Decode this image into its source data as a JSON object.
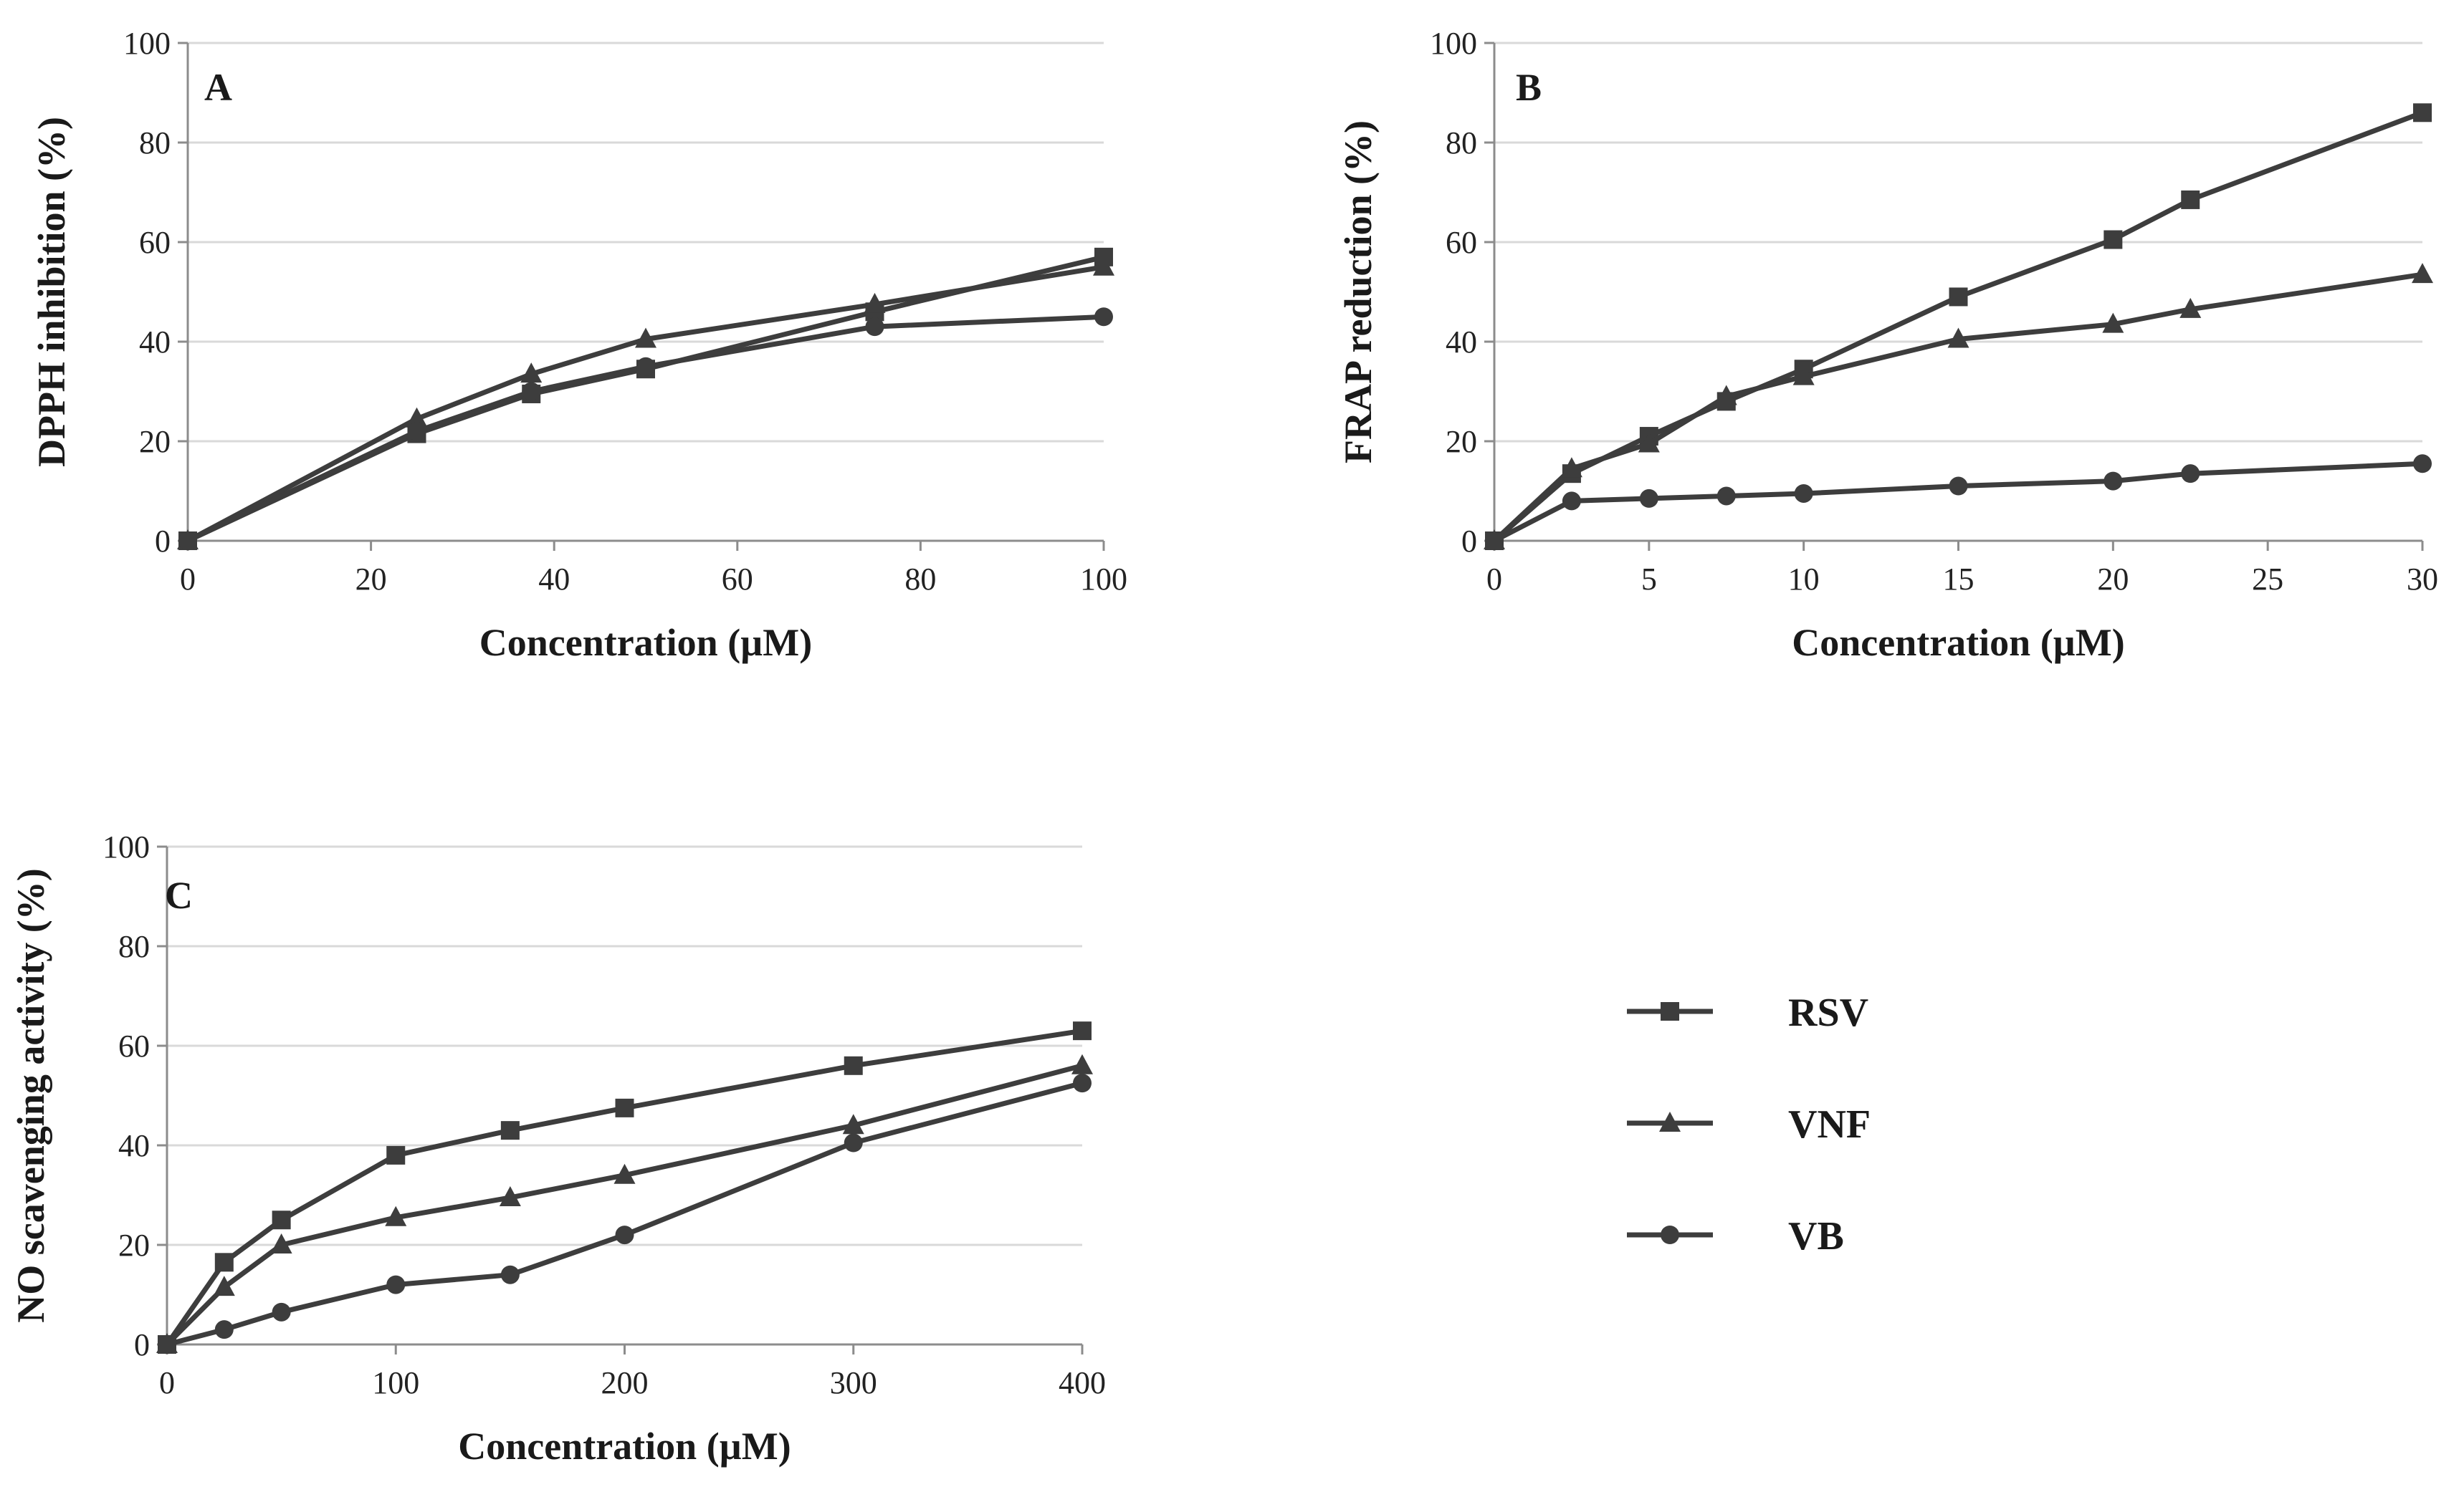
{
  "chart_data": [
    {
      "type": "line",
      "panel": "A",
      "xlabel": "Concentration (µM)",
      "ylabel": "DPPH inhibition (%)",
      "xlim": [
        0,
        100
      ],
      "ylim": [
        0,
        100
      ],
      "xticks": [
        0,
        20,
        40,
        60,
        80,
        100
      ],
      "yticks": [
        0,
        20,
        40,
        60,
        80,
        100
      ],
      "grid": "horizontal",
      "series": [
        {
          "name": "RSV",
          "marker": "square",
          "color": "#3d3d3d",
          "x": [
            0,
            25,
            37.5,
            50,
            75,
            100
          ],
          "y": [
            0,
            21.5,
            29.5,
            34.5,
            46,
            57
          ]
        },
        {
          "name": "VNF",
          "marker": "triangle",
          "color": "#3d3d3d",
          "x": [
            0,
            25,
            37.5,
            50,
            75,
            100
          ],
          "y": [
            0,
            24.5,
            33.5,
            40.5,
            47.5,
            55
          ]
        },
        {
          "name": "VB",
          "marker": "circle",
          "color": "#3d3d3d",
          "x": [
            0,
            25,
            37.5,
            50,
            75,
            100
          ],
          "y": [
            0,
            22,
            30,
            35,
            43,
            45
          ]
        }
      ]
    },
    {
      "type": "line",
      "panel": "B",
      "xlabel": "Concentration (µM)",
      "ylabel": "FRAP reduction (%)",
      "xlim": [
        0,
        30
      ],
      "ylim": [
        0,
        100
      ],
      "xticks": [
        0,
        5,
        10,
        15,
        20,
        25,
        30
      ],
      "yticks": [
        0,
        20,
        40,
        60,
        80,
        100
      ],
      "grid": "horizontal",
      "series": [
        {
          "name": "RSV",
          "marker": "square",
          "color": "#3d3d3d",
          "x": [
            0,
            2.5,
            5,
            7.5,
            10,
            15,
            20,
            22.5,
            30
          ],
          "y": [
            0,
            13.5,
            21,
            28,
            34.5,
            49,
            60.5,
            68.5,
            86
          ]
        },
        {
          "name": "VNF",
          "marker": "triangle",
          "color": "#3d3d3d",
          "x": [
            0,
            2.5,
            5,
            7.5,
            10,
            15,
            20,
            22.5,
            30
          ],
          "y": [
            0,
            14.5,
            19.5,
            29,
            33,
            40.5,
            43.5,
            46.5,
            53.5
          ]
        },
        {
          "name": "VB",
          "marker": "circle",
          "color": "#3d3d3d",
          "x": [
            0,
            2.5,
            5,
            7.5,
            10,
            15,
            20,
            22.5,
            30
          ],
          "y": [
            0,
            8,
            8.5,
            9,
            9.5,
            11,
            12,
            13.5,
            15.5
          ]
        }
      ]
    },
    {
      "type": "line",
      "panel": "C",
      "xlabel": "Concentration (µM)",
      "ylabel": "NO scavenging activity (%)",
      "xlim": [
        0,
        400
      ],
      "ylim": [
        0,
        100
      ],
      "xticks": [
        0,
        100,
        200,
        300,
        400
      ],
      "yticks": [
        0,
        20,
        40,
        60,
        80,
        100
      ],
      "grid": "horizontal",
      "series": [
        {
          "name": "RSV",
          "marker": "square",
          "color": "#3d3d3d",
          "x": [
            0,
            25,
            50,
            100,
            150,
            200,
            300,
            400
          ],
          "y": [
            0,
            16.5,
            25,
            38,
            43,
            47.5,
            56,
            63
          ]
        },
        {
          "name": "VNF",
          "marker": "triangle",
          "color": "#3d3d3d",
          "x": [
            0,
            25,
            50,
            100,
            150,
            200,
            300,
            400
          ],
          "y": [
            0,
            11.5,
            20,
            25.5,
            29.5,
            34,
            44,
            56
          ]
        },
        {
          "name": "VB",
          "marker": "circle",
          "color": "#3d3d3d",
          "x": [
            0,
            25,
            50,
            100,
            150,
            200,
            300,
            400
          ],
          "y": [
            0,
            3,
            6.5,
            12,
            14,
            22,
            40.5,
            52.5
          ]
        }
      ]
    }
  ],
  "legend": {
    "placement": "bottom-right",
    "items": [
      {
        "label": "RSV",
        "marker": "square"
      },
      {
        "label": "VNF",
        "marker": "triangle"
      },
      {
        "label": "VB",
        "marker": "circle"
      }
    ]
  }
}
